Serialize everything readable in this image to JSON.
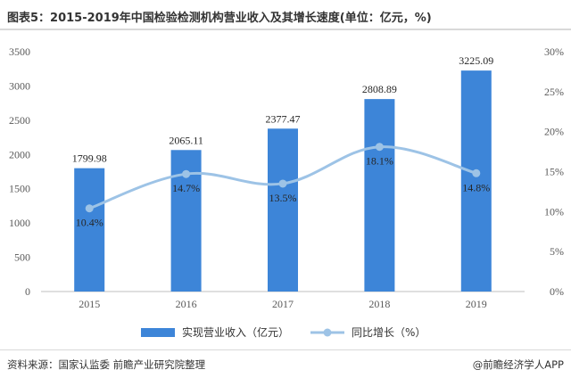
{
  "title": "图表5：2015-2019年中国检验检测机构营业收入及其增长速度(单位：亿元，%)",
  "source": "资料来源：国家认监委 前瞻产业研究院整理",
  "brand": "@前瞻经济学人APP",
  "chart_data": {
    "type": "bar",
    "categories": [
      "2015",
      "2016",
      "2017",
      "2018",
      "2019"
    ],
    "series": [
      {
        "name": "实现营业收入（亿元）",
        "type": "bar",
        "axis": "left",
        "color": "#3d85d8",
        "values": [
          1799.98,
          2065.11,
          2377.47,
          2808.89,
          3225.09
        ],
        "labels": [
          "1799.98",
          "2065.11",
          "2377.47",
          "2808.89",
          "3225.09"
        ]
      },
      {
        "name": "同比增长（%）",
        "type": "line",
        "axis": "right",
        "color": "#9dc3e6",
        "values": [
          10.4,
          14.7,
          13.5,
          18.1,
          14.8
        ],
        "labels": [
          "10.4%",
          "14.7%",
          "13.5%",
          "18.1%",
          "14.8%"
        ]
      }
    ],
    "y_left": {
      "min": 0,
      "max": 3500,
      "ticks": [
        "0",
        "500",
        "1000",
        "1500",
        "2000",
        "2500",
        "3000",
        "3500"
      ]
    },
    "y_right": {
      "min": 0,
      "max": 30,
      "ticks": [
        "0%",
        "5%",
        "10%",
        "15%",
        "20%",
        "25%",
        "30%"
      ]
    },
    "grid": false,
    "legend_position": "bottom"
  }
}
